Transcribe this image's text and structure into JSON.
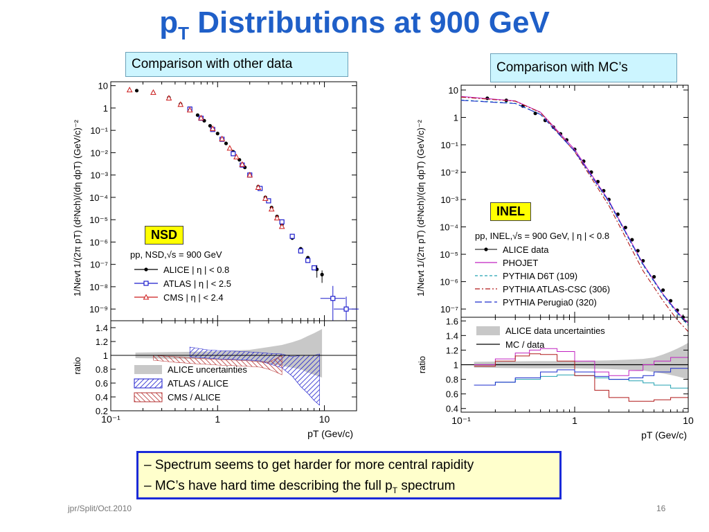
{
  "slide": {
    "title_main": "p",
    "title_sub": "T",
    "title_rest": " Distributions at 900 GeV",
    "left_banner": "Comparison with other data",
    "right_banner": "Comparison with MC’s",
    "nsd_tag": "NSD",
    "inel_tag": "INEL",
    "note_line1": "– Spectrum seems to get harder for more central rapidity",
    "note_line2_a": "– MC’s have hard time describing the full p",
    "note_line2_sub": "T",
    "note_line2_b": " spectrum",
    "footer_left": "jpr/Split/Oct.2010",
    "page_number": "16",
    "colors": {
      "title": "#1f5fc8",
      "banner_bg": "#ccf5ff",
      "tag_bg": "#ffff00",
      "note_border": "#1a2ad8",
      "note_bg": "#ffffcc"
    }
  },
  "chart_data": [
    {
      "type": "scatter",
      "panel": "left-top",
      "x_scale": "log",
      "y_scale": "log",
      "xlim": [
        0.1,
        20
      ],
      "ylim": [
        3e-10,
        15
      ],
      "ylabel": "1/Nevt 1/(2π pT) (d²Nch)/(dη dpT) (GeV/c)⁻²",
      "y_ticks": [
        "10",
        "1",
        "10⁻¹",
        "10⁻²",
        "10⁻³",
        "10⁻⁴",
        "10⁻⁵",
        "10⁻⁶",
        "10⁻⁷",
        "10⁻⁸",
        "10⁻⁹"
      ],
      "legend_title": "pp, NSD,√s = 900 GeV",
      "legend_placement": "bottom-left",
      "series": [
        {
          "name": "ALICE | η | < 0.8",
          "color": "#000000",
          "marker": "circle",
          "x": [
            0.175,
            0.25,
            0.35,
            0.45,
            0.55,
            0.65,
            0.75,
            0.85,
            1.0,
            1.2,
            1.4,
            1.6,
            1.8,
            2.0,
            2.4,
            2.8,
            3.2,
            3.6,
            4.0,
            5.0,
            6.0,
            7.0,
            8.5,
            9.5
          ],
          "y": [
            6.0,
            4.8,
            2.9,
            1.5,
            0.85,
            0.48,
            0.27,
            0.16,
            0.072,
            0.026,
            0.011,
            0.0048,
            0.0022,
            0.0011,
            0.0003,
            0.0001,
            3.5e-05,
            1.4e-05,
            6e-06,
            1.5e-06,
            5e-07,
            2e-07,
            6e-08,
            3.5e-08
          ]
        },
        {
          "name": "ATLAS | η | < 2.5",
          "color": "#1a1acc",
          "marker": "square",
          "x": [
            0.55,
            0.7,
            0.9,
            1.1,
            1.4,
            1.7,
            2.0,
            2.5,
            3.0,
            4.0,
            5.0,
            6.0,
            7.0,
            8.0,
            12.0,
            16.0
          ],
          "y": [
            0.9,
            0.35,
            0.11,
            0.04,
            0.009,
            0.0028,
            0.001,
            0.00025,
            7e-05,
            8e-06,
            1.8e-06,
            4e-07,
            1.5e-07,
            7e-08,
            3e-09,
            1e-09
          ]
        },
        {
          "name": "CMS | η | < 2.4",
          "color": "#cc1a1a",
          "marker": "triangle",
          "x": [
            0.15,
            0.25,
            0.35,
            0.45,
            0.55,
            0.7,
            0.9,
            1.1,
            1.3,
            1.5,
            1.7,
            2.0,
            2.4,
            2.8,
            3.2,
            3.6,
            4.0
          ],
          "y": [
            6.5,
            5.0,
            2.8,
            1.45,
            0.82,
            0.36,
            0.12,
            0.042,
            0.016,
            0.0065,
            0.003,
            0.001,
            0.00028,
            9e-05,
            3e-05,
            1.2e-05,
            5e-06
          ]
        }
      ]
    },
    {
      "type": "area",
      "panel": "left-bottom",
      "x_scale": "log",
      "xlim": [
        0.1,
        20
      ],
      "ylim": [
        0.2,
        1.5
      ],
      "xlabel": "pT (Gev/c)",
      "ylabel": "ratio",
      "x_ticks": [
        "10⁻¹",
        "1",
        "10"
      ],
      "y_ticks": [
        "1.4",
        "1.2",
        "1",
        "0.8",
        "0.6",
        "0.4",
        "0.2"
      ],
      "legend_placement": "bottom-left",
      "series": [
        {
          "name": "ALICE uncertainties",
          "color": "#c8c8c8",
          "x": [
            0.17,
            0.5,
            1.0,
            2.0,
            3.0,
            4.0,
            5.0,
            6.0,
            7.0,
            8.0,
            9.5
          ],
          "lo": [
            0.96,
            0.95,
            0.94,
            0.92,
            0.88,
            0.85,
            0.82,
            0.8,
            0.75,
            0.72,
            0.68
          ],
          "hi": [
            1.04,
            1.05,
            1.06,
            1.08,
            1.12,
            1.15,
            1.19,
            1.23,
            1.28,
            1.32,
            1.38
          ]
        },
        {
          "name": "ATLAS / ALICE",
          "color": "#1a1acc",
          "x": [
            0.55,
            0.8,
            1.0,
            1.5,
            2.0,
            2.5,
            3.0,
            4.0,
            5.0,
            6.0,
            7.0,
            8.0,
            9.0
          ],
          "lo": [
            0.98,
            0.96,
            0.95,
            0.94,
            0.93,
            0.92,
            0.88,
            0.82,
            0.7,
            0.55,
            0.45,
            0.35,
            0.28
          ],
          "hi": [
            1.12,
            1.08,
            1.07,
            1.06,
            1.05,
            1.04,
            1.03,
            1.02,
            0.98,
            1.0,
            1.0,
            1.0,
            1.02
          ]
        },
        {
          "name": "CMS / ALICE",
          "color": "#b53030",
          "x": [
            0.25,
            0.4,
            0.6,
            0.8,
            1.0,
            1.5,
            2.0,
            2.5,
            3.0,
            3.5,
            4.0
          ],
          "lo": [
            0.93,
            0.9,
            0.88,
            0.87,
            0.86,
            0.85,
            0.84,
            0.83,
            0.8,
            0.76,
            0.72
          ],
          "hi": [
            1.0,
            0.98,
            0.96,
            0.95,
            0.94,
            0.93,
            0.92,
            0.91,
            0.9,
            0.95,
            1.0
          ]
        }
      ]
    },
    {
      "type": "line",
      "panel": "right-top",
      "x_scale": "log",
      "y_scale": "log",
      "xlim": [
        0.1,
        10
      ],
      "ylim": [
        5e-08,
        15
      ],
      "ylabel": "1/Nevt 1/(2π pT) (d²Nch)/(dη dpT) (GeV/c)⁻²",
      "y_ticks": [
        "10",
        "1",
        "10⁻¹",
        "10⁻²",
        "10⁻³",
        "10⁻⁴",
        "10⁻⁵",
        "10⁻⁶",
        "10⁻⁷"
      ],
      "legend_title": "pp, INEL,√s = 900 GeV, | η | < 0.8",
      "legend_placement": "bottom-left",
      "series": [
        {
          "name": "ALICE data",
          "color": "#000000",
          "style": "markers",
          "x": [
            0.17,
            0.25,
            0.35,
            0.45,
            0.55,
            0.65,
            0.75,
            0.85,
            1.0,
            1.2,
            1.4,
            1.6,
            1.8,
            2.0,
            2.4,
            2.8,
            3.2,
            3.6,
            4.0,
            5.0,
            6.0,
            7.0,
            8.0,
            9.0
          ],
          "y": [
            5.0,
            4.2,
            2.6,
            1.4,
            0.78,
            0.44,
            0.25,
            0.15,
            0.068,
            0.025,
            0.01,
            0.0045,
            0.0021,
            0.001,
            0.00029,
            9.5e-05,
            3.4e-05,
            1.35e-05,
            5.8e-06,
            1.5e-06,
            4.9e-07,
            2e-07,
            9e-08,
            5e-08
          ]
        },
        {
          "name": "PHOJET",
          "color": "#c020c0",
          "style": "solid",
          "x": [
            0.1,
            0.3,
            0.5,
            1.0,
            2.0,
            4.0,
            6.0,
            8.0,
            10.0
          ],
          "y": [
            5.8,
            4.0,
            1.55,
            0.067,
            0.0009,
            4.5e-06,
            3.5e-07,
            8e-08,
            3e-08
          ]
        },
        {
          "name": "PYTHIA D6T (109)",
          "color": "#20a0b0",
          "style": "dashed",
          "x": [
            0.1,
            0.3,
            0.5,
            1.0,
            2.0,
            4.0,
            6.0,
            8.0,
            10.0
          ],
          "y": [
            4.3,
            3.3,
            1.3,
            0.058,
            0.0008,
            4e-06,
            3.2e-07,
            7e-08,
            2.5e-08
          ]
        },
        {
          "name": "PYTHIA ATLAS-CSC (306)",
          "color": "#b01818",
          "style": "dash-dot",
          "x": [
            0.1,
            0.3,
            0.5,
            1.0,
            2.0,
            4.0,
            6.0,
            8.0,
            10.0
          ],
          "y": [
            5.5,
            3.9,
            1.5,
            0.056,
            0.0006,
            2.5e-06,
            2e-07,
            4e-08,
            1.5e-08
          ]
        },
        {
          "name": "PYTHIA Perugia0 (320)",
          "color": "#1a2acc",
          "style": "long-dash",
          "x": [
            0.1,
            0.3,
            0.5,
            1.0,
            2.0,
            4.0,
            6.0,
            8.0,
            10.0
          ],
          "y": [
            4.2,
            3.2,
            1.28,
            0.058,
            0.00085,
            4.3e-06,
            3.4e-07,
            7.5e-08,
            2.7e-08
          ]
        }
      ]
    },
    {
      "type": "line",
      "panel": "right-bottom",
      "x_scale": "log",
      "xlim": [
        0.1,
        10
      ],
      "ylim": [
        0.35,
        1.65
      ],
      "xlabel": "pT (Gev/c)",
      "ylabel": "ratio",
      "x_ticks": [
        "10⁻¹",
        "1",
        "10"
      ],
      "y_ticks": [
        "1.6",
        "1.4",
        "1.2",
        "1",
        "0.8",
        "0.6",
        "0.4"
      ],
      "legend_placement": "top-left",
      "band": {
        "name": "ALICE data uncertainties",
        "color": "#c8c8c8",
        "x": [
          0.13,
          0.5,
          1.0,
          2.0,
          3.0,
          4.0,
          5.0,
          6.0,
          7.0,
          8.0,
          9.0,
          10.0
        ],
        "lo": [
          0.96,
          0.95,
          0.95,
          0.94,
          0.93,
          0.92,
          0.9,
          0.88,
          0.86,
          0.84,
          0.82,
          0.8
        ],
        "hi": [
          1.04,
          1.05,
          1.05,
          1.06,
          1.07,
          1.08,
          1.1,
          1.14,
          1.18,
          1.22,
          1.26,
          1.3
        ]
      },
      "reference": {
        "name": "MC / data",
        "value": 1.0
      },
      "series": [
        {
          "name": "PHOJET",
          "color": "#c020c0",
          "x": [
            0.13,
            0.2,
            0.3,
            0.4,
            0.5,
            0.7,
            1.0,
            1.5,
            2.0,
            3.0,
            4.0,
            5.0,
            7.0,
            10.0
          ],
          "y": [
            1.0,
            1.08,
            1.16,
            1.2,
            1.22,
            1.18,
            1.05,
            0.9,
            0.85,
            0.92,
            1.0,
            1.05,
            1.1,
            1.2
          ]
        },
        {
          "name": "PYTHIA D6T (109)",
          "color": "#20a0b0",
          "x": [
            0.13,
            0.2,
            0.3,
            0.5,
            0.7,
            1.0,
            1.5,
            2.0,
            3.0,
            4.0,
            5.0,
            7.0,
            10.0
          ],
          "y": [
            0.72,
            0.76,
            0.8,
            0.84,
            0.86,
            0.85,
            0.82,
            0.8,
            0.78,
            0.75,
            0.72,
            0.68,
            0.62
          ]
        },
        {
          "name": "PYTHIA ATLAS-CSC (306)",
          "color": "#b01818",
          "x": [
            0.13,
            0.2,
            0.3,
            0.4,
            0.5,
            0.7,
            1.0,
            1.5,
            2.0,
            3.0,
            4.0,
            5.0,
            7.0,
            10.0
          ],
          "y": [
            0.98,
            1.05,
            1.12,
            1.15,
            1.14,
            1.05,
            0.85,
            0.65,
            0.55,
            0.5,
            0.5,
            0.52,
            0.55,
            0.6
          ]
        },
        {
          "name": "PYTHIA Perugia0 (320)",
          "color": "#1a2acc",
          "x": [
            0.13,
            0.2,
            0.3,
            0.5,
            0.7,
            1.0,
            1.5,
            2.0,
            3.0,
            4.0,
            5.0,
            7.0,
            10.0
          ],
          "y": [
            0.72,
            0.76,
            0.82,
            0.9,
            0.93,
            0.9,
            0.84,
            0.8,
            0.82,
            0.85,
            0.9,
            0.95,
            1.0
          ]
        }
      ]
    }
  ]
}
